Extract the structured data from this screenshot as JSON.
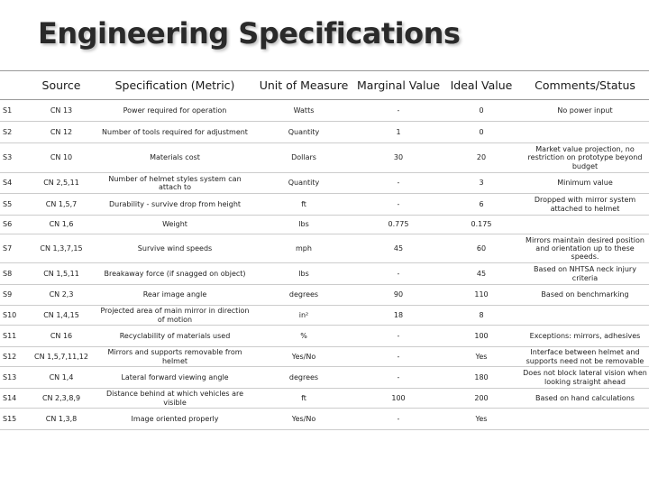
{
  "title": "Engineering Specifications",
  "headers": [
    "",
    "Source",
    "Specification (Metric)",
    "Unit of Measure",
    "Marginal Value",
    "Ideal Value",
    "Comments/Status"
  ],
  "rows": [
    {
      "id": "S1",
      "source": "CN 13",
      "spec": "Power required for operation",
      "unit": "Watts",
      "marginal": "-",
      "ideal": "0",
      "comments": "No power input"
    },
    {
      "id": "S2",
      "source": "CN 12",
      "spec": "Number of tools required for adjustment",
      "unit": "Quantity",
      "marginal": "1",
      "ideal": "0",
      "comments": ""
    },
    {
      "id": "S3",
      "source": "CN 10",
      "spec": "Materials cost",
      "unit": "Dollars",
      "marginal": "30",
      "ideal": "20",
      "comments": "Market value projection, no restriction on prototype beyond budget"
    },
    {
      "id": "S4",
      "source": "CN 2,5,11",
      "spec": "Number of helmet styles system can attach to",
      "unit": "Quantity",
      "marginal": "-",
      "ideal": "3",
      "comments": "Minimum value"
    },
    {
      "id": "S5",
      "source": "CN 1,5,7",
      "spec": "Durability - survive drop from height",
      "unit": "ft",
      "marginal": "-",
      "ideal": "6",
      "comments": "Dropped with mirror system attached to helmet"
    },
    {
      "id": "S6",
      "source": "CN 1,6",
      "spec": "Weight",
      "unit": "lbs",
      "marginal": "0.775",
      "ideal": "0.175",
      "comments": ""
    },
    {
      "id": "S7",
      "source": "CN 1,3,7,15",
      "spec": "Survive wind speeds",
      "unit": "mph",
      "marginal": "45",
      "ideal": "60",
      "comments": "Mirrors maintain desired position and orientation up to these speeds."
    },
    {
      "id": "S8",
      "source": "CN 1,5,11",
      "spec": "Breakaway force (if snagged on object)",
      "unit": "lbs",
      "marginal": "-",
      "ideal": "45",
      "comments": "Based on NHTSA neck injury criteria"
    },
    {
      "id": "S9",
      "source": "CN 2,3",
      "spec": "Rear image angle",
      "unit": "degrees",
      "marginal": "90",
      "ideal": "110",
      "comments": "Based on benchmarking"
    },
    {
      "id": "S10",
      "source": "CN 1,4,15",
      "spec": "Projected area of main mirror in direction of motion",
      "unit": "in²",
      "marginal": "18",
      "ideal": "8",
      "comments": ""
    },
    {
      "id": "S11",
      "source": "CN 16",
      "spec": "Recyclability of materials used",
      "unit": "%",
      "marginal": "-",
      "ideal": "100",
      "comments": "Exceptions: mirrors, adhesives"
    },
    {
      "id": "S12",
      "source": "CN 1,5,7,11,12",
      "spec": "Mirrors and supports removable from helmet",
      "unit": "Yes/No",
      "marginal": "-",
      "ideal": "Yes",
      "comments": "Interface between helmet and supports need not be removable"
    },
    {
      "id": "S13",
      "source": "CN 1,4",
      "spec": "Lateral forward viewing angle",
      "unit": "degrees",
      "marginal": "-",
      "ideal": "180",
      "comments": "Does not block lateral vision when looking straight ahead"
    },
    {
      "id": "S14",
      "source": "CN 2,3,8,9",
      "spec": "Distance behind at which vehicles are visible",
      "unit": "ft",
      "marginal": "100",
      "ideal": "200",
      "comments": "Based on hand calculations"
    },
    {
      "id": "S15",
      "source": "CN 1,3,8",
      "spec": "Image oriented properly",
      "unit": "Yes/No",
      "marginal": "-",
      "ideal": "Yes",
      "comments": ""
    }
  ]
}
